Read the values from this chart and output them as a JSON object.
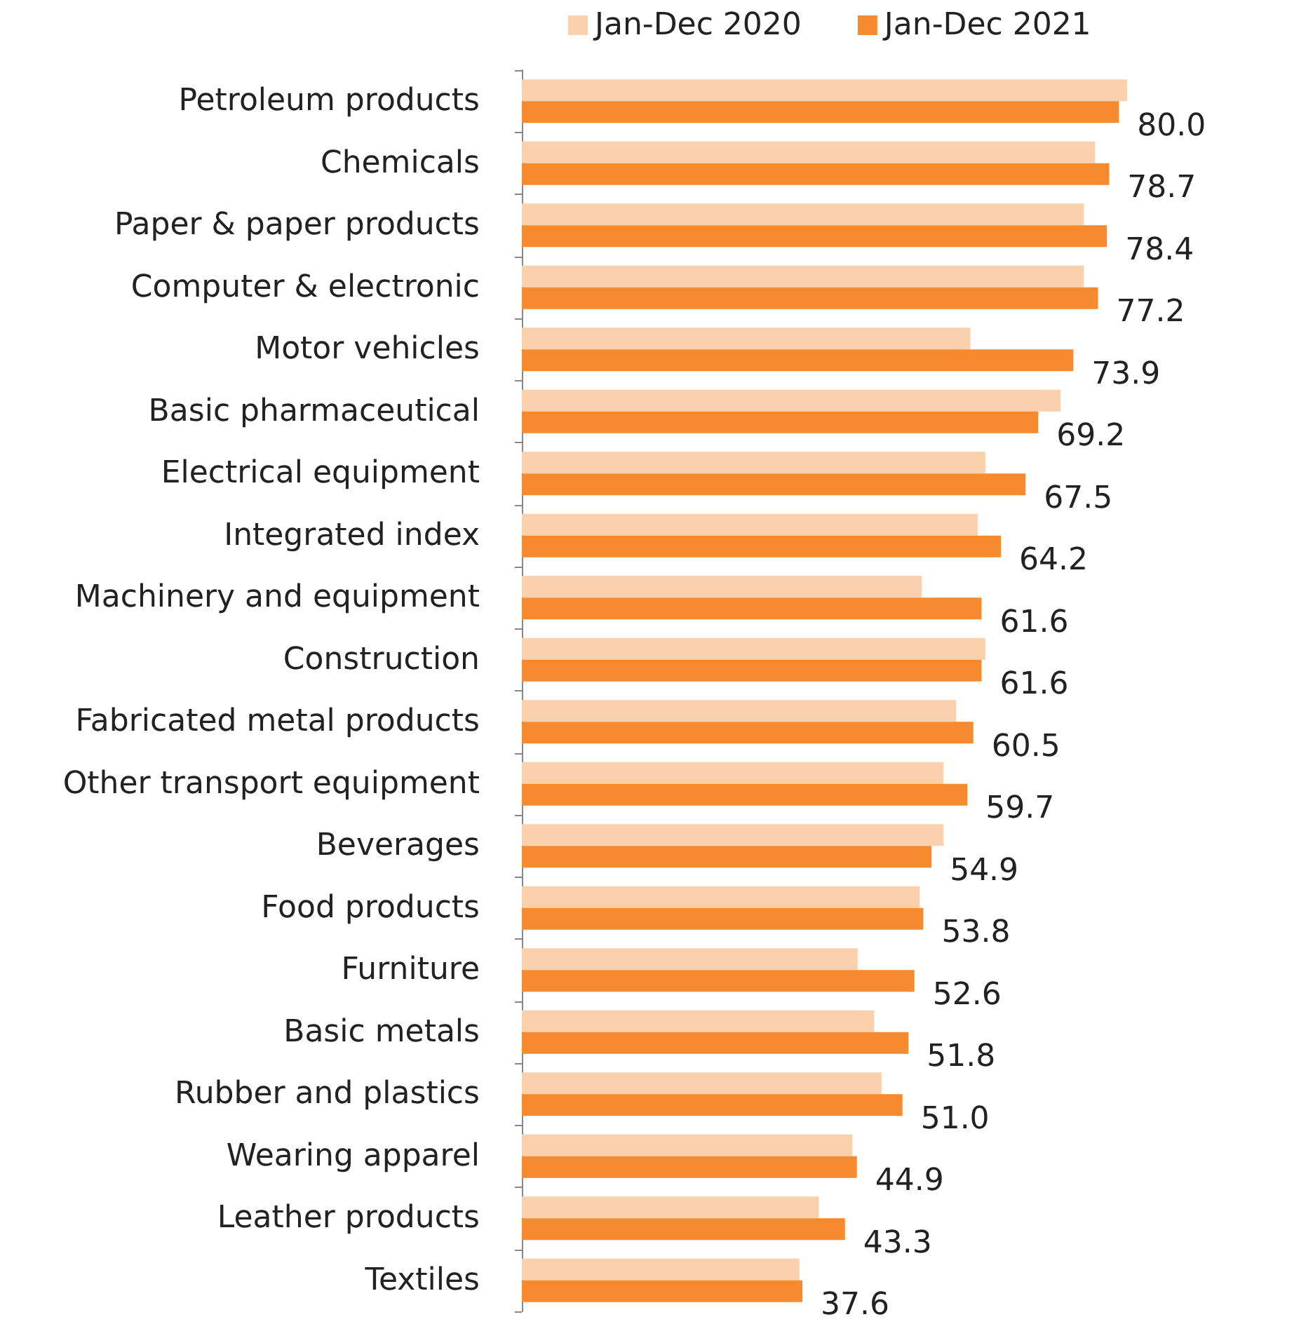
{
  "chart_data": {
    "type": "bar",
    "orientation": "horizontal",
    "categories": [
      "Petroleum products",
      "Chemicals",
      "Paper & paper products",
      "Computer & electronic",
      "Motor vehicles",
      "Basic pharmaceutical",
      "Electrical equipment",
      "Integrated index",
      "Machinery and equipment",
      "Construction",
      "Fabricated metal products",
      "Other transport equipment",
      "Beverages",
      "Food products",
      "Furniture",
      "Basic metals",
      "Rubber and plastics",
      "Wearing apparel",
      "Leather products",
      "Textiles"
    ],
    "series": [
      {
        "name": "Jan-Dec 2020",
        "color": "#fbd0ac",
        "values": [
          81.1,
          76.8,
          75.3,
          75.3,
          60.1,
          72.2,
          62.1,
          61.1,
          53.6,
          62.1,
          58.2,
          56.5,
          56.5,
          53.3,
          45.0,
          47.2,
          48.2,
          44.3,
          39.8,
          37.2
        ]
      },
      {
        "name": "Jan-Dec 2021",
        "color": "#f58a2e",
        "values": [
          80.0,
          78.7,
          78.4,
          77.2,
          73.9,
          69.2,
          67.5,
          64.2,
          61.6,
          61.6,
          60.5,
          59.7,
          54.9,
          53.8,
          52.6,
          51.8,
          51.0,
          44.9,
          43.3,
          37.6
        ],
        "value_labels": [
          "80.0",
          "78.7",
          "78.4",
          "77.2",
          "73.9",
          "69.2",
          "67.5",
          "64.2",
          "61.6",
          "61.6",
          "60.5",
          "59.7",
          "54.9",
          "53.8",
          "52.6",
          "51.8",
          "51.0",
          "44.9",
          "43.3",
          "37.6"
        ]
      }
    ],
    "tick_labels": "y",
    "grid": false,
    "legend": "top"
  }
}
